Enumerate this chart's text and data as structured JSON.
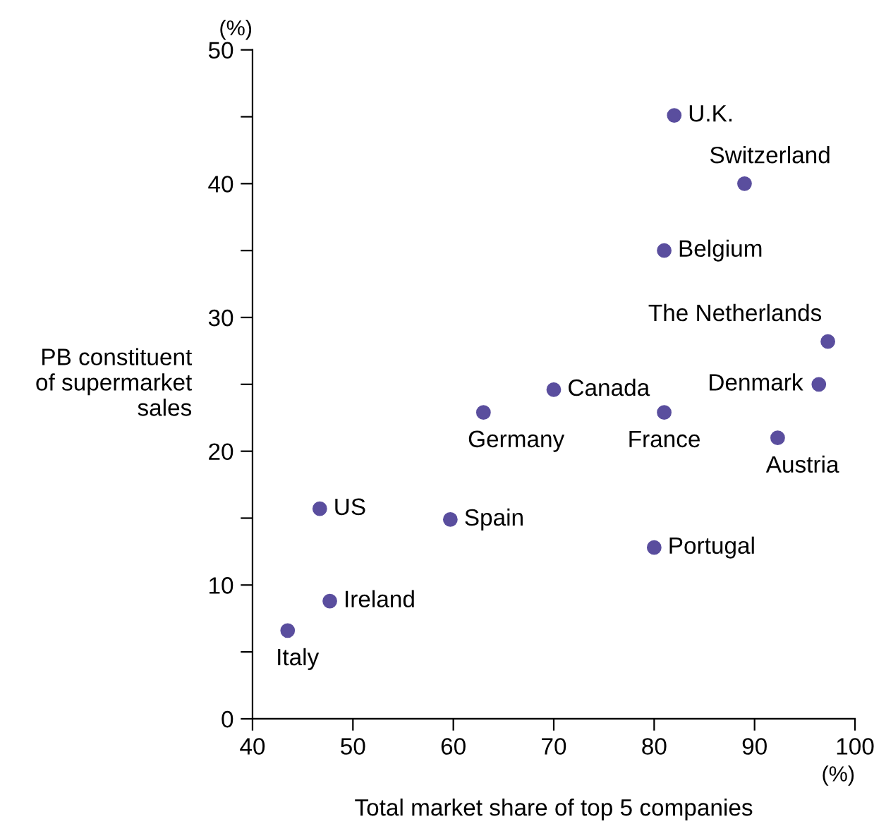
{
  "chart_data": {
    "type": "scatter",
    "xlabel": "Total market share of top 5 companies",
    "ylabel": "PB constituent\nof supermarket\nsales",
    "x": [
      82,
      89,
      81,
      97.3,
      96.4,
      70,
      63,
      81,
      92.3,
      46.7,
      59.7,
      80,
      47.7,
      43.5
    ],
    "series": [
      {
        "color": "#5a4e9e",
        "values": [
          45.1,
          40,
          35,
          28.2,
          25,
          24.6,
          22.9,
          22.9,
          21,
          15.7,
          14.9,
          12.8,
          8.8,
          6.6
        ]
      }
    ],
    "marker": "circle",
    "xlim": [
      40,
      100
    ],
    "xticks": [
      40,
      50,
      60,
      70,
      80,
      90,
      100
    ],
    "ylim": [
      0,
      50
    ],
    "yticks": [
      0,
      {
        "value": 5,
        "label": null
      },
      10,
      {
        "value": 15,
        "label": null
      },
      20,
      {
        "value": 25,
        "label": null
      },
      30,
      {
        "value": 35,
        "label": null
      },
      40,
      {
        "value": 45,
        "label": null
      },
      50
    ],
    "grid": false,
    "legend": false,
    "annotations": [
      {
        "text": "U.K.",
        "x": 82,
        "y": 45.1
      },
      {
        "text": "Switzerland",
        "x": 89,
        "y": 40
      },
      {
        "text": "Belgium",
        "x": 81,
        "y": 35
      },
      {
        "text": "The Netherlands",
        "x": 97.3,
        "y": 28.2
      },
      {
        "text": "Denmark",
        "x": 96.4,
        "y": 25
      },
      {
        "text": "Canada",
        "x": 70,
        "y": 24.6
      },
      {
        "text": "Germany",
        "x": 63,
        "y": 22.9
      },
      {
        "text": "France",
        "x": 81,
        "y": 22.9
      },
      {
        "text": "Austria",
        "x": 92.3,
        "y": 21
      },
      {
        "text": "US",
        "x": 46.7,
        "y": 15.7
      },
      {
        "text": "Spain",
        "x": 59.7,
        "y": 14.9
      },
      {
        "text": "Portugal",
        "x": 80,
        "y": 12.8
      },
      {
        "text": "Ireland",
        "x": 47.7,
        "y": 8.8
      },
      {
        "text": "Italy",
        "x": 43.5,
        "y": 6.6
      },
      "(%)",
      "(%)"
    ]
  }
}
